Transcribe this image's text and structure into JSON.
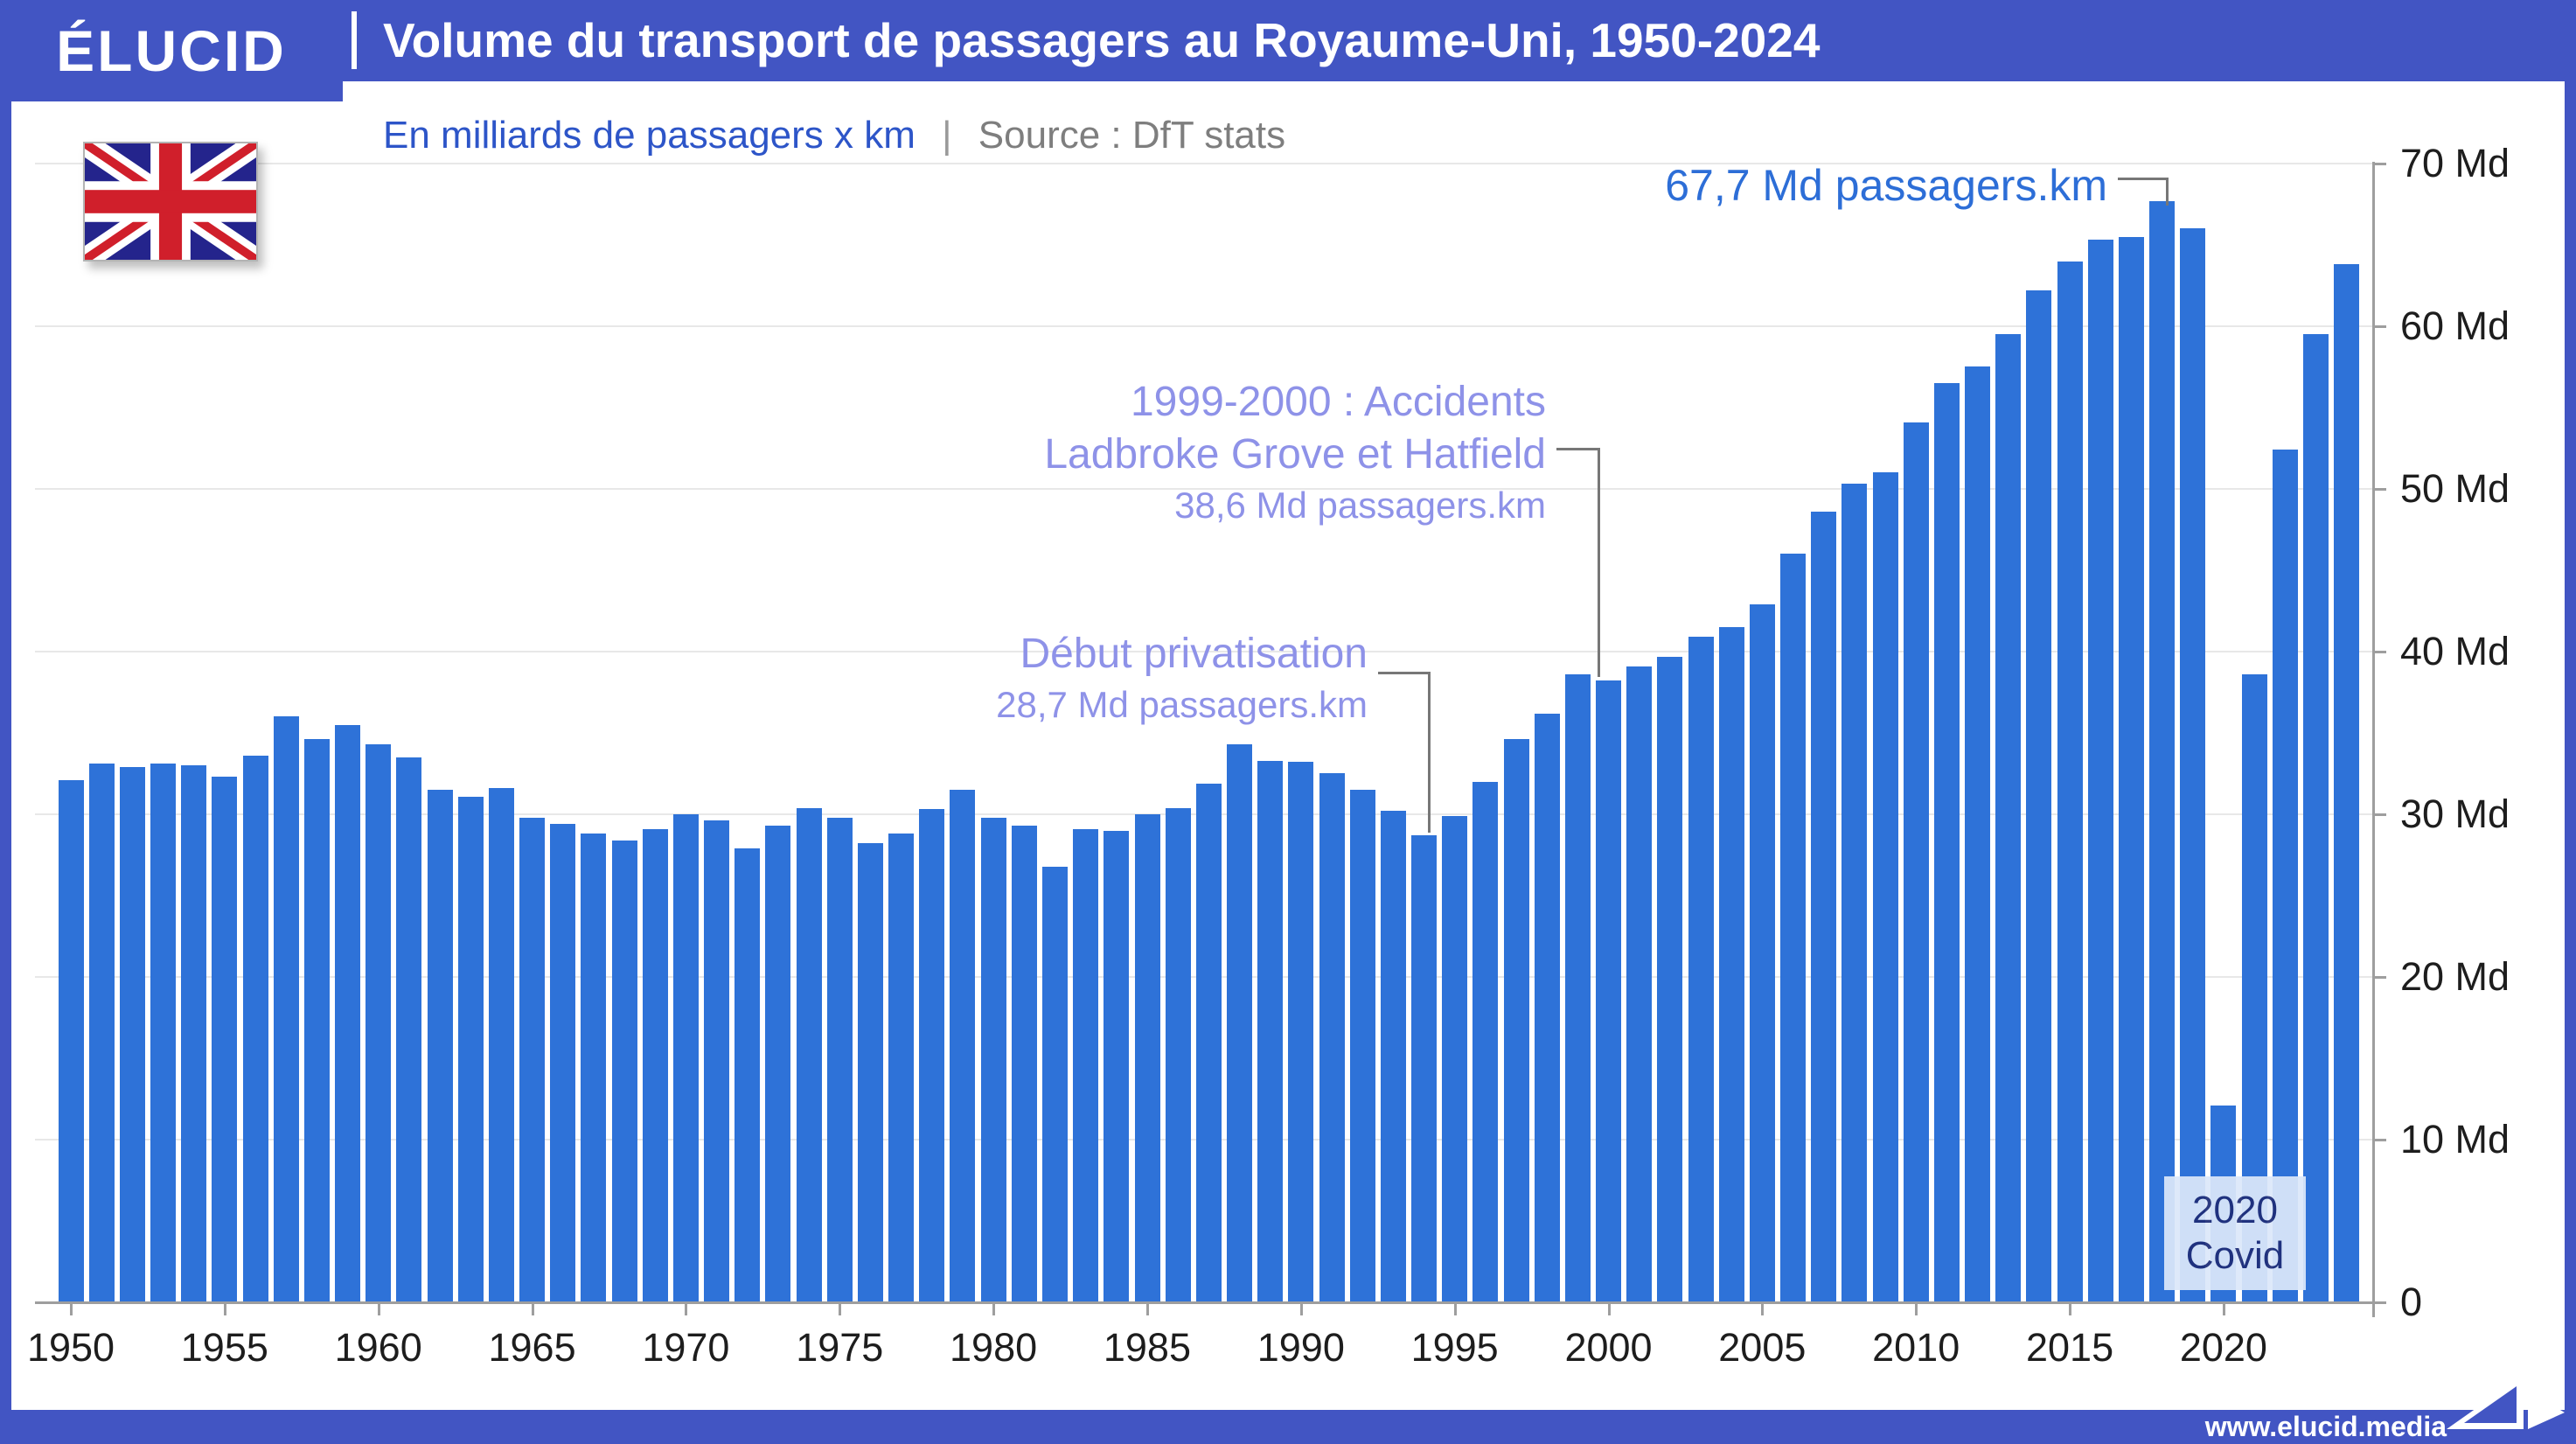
{
  "header": {
    "brand": "ÉLUCID",
    "title": "Volume du transport de passagers au Royaume-Uni, 1950-2024"
  },
  "subtitle": {
    "label": "En milliards de passagers x km",
    "divider": "|",
    "source": "Source : DfT stats"
  },
  "flag": {
    "icon": "union-jack-flag"
  },
  "annotations": {
    "peak": {
      "text": "67,7 Md passagers.km"
    },
    "accidents": {
      "line1": "1999-2000 : Accidents",
      "line2": "Ladbroke Grove et Hatfield",
      "line3": "38,6 Md passagers.km"
    },
    "privatisation": {
      "line1": "Début privatisation",
      "line2": "28,7 Md passagers.km"
    },
    "covid": {
      "line1": "2020",
      "line2": "Covid"
    }
  },
  "y_axis": {
    "ticks": [
      {
        "value": 0,
        "label": "0"
      },
      {
        "value": 10,
        "label": "10 Md"
      },
      {
        "value": 20,
        "label": "20 Md"
      },
      {
        "value": 30,
        "label": "30 Md"
      },
      {
        "value": 40,
        "label": "40 Md"
      },
      {
        "value": 50,
        "label": "50 Md"
      },
      {
        "value": 60,
        "label": "60 Md"
      },
      {
        "value": 70,
        "label": "70 Md"
      }
    ]
  },
  "x_axis": {
    "ticks": [
      "1950",
      "1955",
      "1960",
      "1965",
      "1970",
      "1975",
      "1980",
      "1985",
      "1990",
      "1995",
      "2000",
      "2005",
      "2010",
      "2015",
      "2020"
    ]
  },
  "chart_data": {
    "type": "bar",
    "title": "Volume du transport de passagers au Royaume-Uni, 1950-2024",
    "ylabel": "En milliards de passagers x km",
    "unit": "Md passagers.km",
    "source": "DfT stats",
    "ylim": [
      0,
      72
    ],
    "grid": "horizontal",
    "legend": "none",
    "categories": [
      1950,
      1951,
      1952,
      1953,
      1954,
      1955,
      1956,
      1957,
      1958,
      1959,
      1960,
      1961,
      1962,
      1963,
      1964,
      1965,
      1966,
      1967,
      1968,
      1969,
      1970,
      1971,
      1972,
      1973,
      1974,
      1975,
      1976,
      1977,
      1978,
      1979,
      1980,
      1981,
      1982,
      1983,
      1984,
      1985,
      1986,
      1987,
      1988,
      1989,
      1990,
      1991,
      1992,
      1993,
      1994,
      1995,
      1996,
      1997,
      1998,
      1999,
      2000,
      2001,
      2002,
      2003,
      2004,
      2005,
      2006,
      2007,
      2008,
      2009,
      2010,
      2011,
      2012,
      2013,
      2014,
      2015,
      2016,
      2017,
      2018,
      2019,
      2020,
      2021,
      2022,
      2023,
      2024
    ],
    "values": [
      32.1,
      33.1,
      32.9,
      33.1,
      33.0,
      32.3,
      33.6,
      36.0,
      34.6,
      35.5,
      34.3,
      33.5,
      31.5,
      31.1,
      31.6,
      29.8,
      29.4,
      28.8,
      28.4,
      29.1,
      30.0,
      29.6,
      27.9,
      29.3,
      30.4,
      29.8,
      28.2,
      28.8,
      30.3,
      31.5,
      29.8,
      29.3,
      26.8,
      29.1,
      29.0,
      30.0,
      30.4,
      31.9,
      34.3,
      33.3,
      33.2,
      32.5,
      31.5,
      30.2,
      28.7,
      29.9,
      32.0,
      34.6,
      36.2,
      38.6,
      38.2,
      39.1,
      39.7,
      40.9,
      41.5,
      42.9,
      46.0,
      48.6,
      50.3,
      51.0,
      54.1,
      56.5,
      57.5,
      59.5,
      62.2,
      64.0,
      65.3,
      65.5,
      67.7,
      66.0,
      12.1,
      38.6,
      52.4,
      59.5,
      63.8
    ],
    "highlights": [
      {
        "year": 2018,
        "value": 67.7,
        "label": "67,7 Md passagers.km"
      },
      {
        "year": 1999,
        "value": 38.6,
        "label": "1999-2000 : Accidents Ladbroke Grove et Hatfield"
      },
      {
        "year": 1994,
        "value": 28.7,
        "label": "Début privatisation"
      },
      {
        "year": 2020,
        "value": 12.1,
        "label": "2020 Covid"
      }
    ]
  },
  "footer": {
    "url": "www.elucid.media",
    "icon": "elucid-flag-logo"
  },
  "colors": {
    "header_blue": "#4255c3",
    "bar_blue": "#2e72d8",
    "subtitle_blue": "#2d55c8",
    "annotation_purple": "#8e92e8",
    "peak_blue": "#2d6ed7",
    "covid_text": "#1e2d78",
    "covid_bg": "#dce8fa",
    "grid": "#e8e8e8",
    "axis": "#9e9e9e",
    "connector": "#777777",
    "label_dark": "#1d1d1d"
  }
}
